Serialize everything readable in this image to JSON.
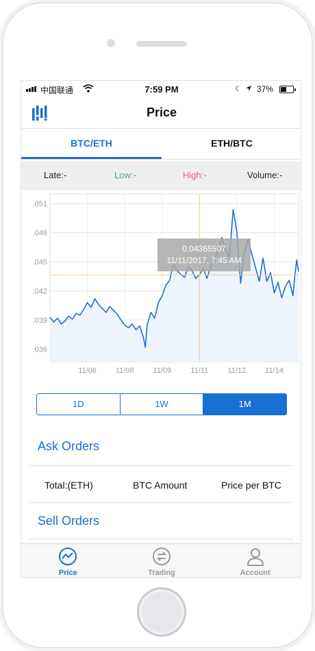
{
  "status_bar": {
    "carrier": "中国联通",
    "time": "7:59 PM",
    "battery": "37%"
  },
  "header": {
    "title": "Price"
  },
  "pair_tabs": [
    {
      "label": "BTC/ETH",
      "active": true
    },
    {
      "label": "ETH/BTC",
      "active": false
    }
  ],
  "stats": {
    "late": "Late:-",
    "low": "Low:-",
    "high": "High:-",
    "volume": "Volume:-",
    "low_color": "#3cb371",
    "high_color": "#e3627a"
  },
  "tooltip": {
    "value": "0.04365507",
    "datetime": "11/11/2017, 7:45 AM"
  },
  "chart_data": {
    "type": "area",
    "title": "",
    "xlabel": "",
    "ylabel": "",
    "y_tick_labels": [
      ".051",
      ".048",
      ".045",
      ".042",
      ".039",
      ".036"
    ],
    "y_ticks": [
      0.051,
      0.048,
      0.045,
      0.042,
      0.039,
      0.036
    ],
    "ylim": [
      0.0347,
      0.052
    ],
    "x_tick_labels": [
      "11/06",
      "11/08",
      "11/09",
      "11/11",
      "11/12",
      "11/14"
    ],
    "x_ticks": [
      2.0,
      4.0,
      6.0,
      8.0,
      10.0,
      12.0
    ],
    "xlim": [
      0.0,
      13.3
    ],
    "grid": true,
    "crosshair": {
      "x": 8.0,
      "y": 0.04366
    },
    "series": [
      {
        "x": [
          0.0,
          0.2,
          0.4,
          0.6,
          0.8,
          1.0,
          1.2,
          1.4,
          1.6,
          1.8,
          2.0,
          2.2,
          2.4,
          2.6,
          2.8,
          3.0,
          3.2,
          3.4,
          3.6,
          3.8,
          4.0,
          4.2,
          4.4,
          4.6,
          4.8,
          5.0,
          5.1,
          5.2,
          5.4,
          5.6,
          5.8,
          6.0,
          6.2,
          6.4,
          6.6,
          6.8,
          7.0,
          7.2,
          7.4,
          7.6,
          7.8,
          8.0,
          8.2,
          8.4,
          8.6,
          8.8,
          9.0,
          9.2,
          9.4,
          9.6,
          9.8,
          10.0,
          10.2,
          10.4,
          10.6,
          10.8,
          11.0,
          11.2,
          11.4,
          11.6,
          11.8,
          12.0,
          12.2,
          12.4,
          12.6,
          12.8,
          13.0,
          13.1,
          13.2,
          13.3
        ],
        "values": [
          0.0393,
          0.0388,
          0.0392,
          0.0386,
          0.0389,
          0.0394,
          0.0391,
          0.0397,
          0.0395,
          0.0401,
          0.0408,
          0.0403,
          0.0412,
          0.0406,
          0.0402,
          0.0398,
          0.0404,
          0.04,
          0.0396,
          0.039,
          0.0385,
          0.0382,
          0.0386,
          0.038,
          0.0384,
          0.0372,
          0.0362,
          0.0385,
          0.0398,
          0.0392,
          0.0408,
          0.0415,
          0.0426,
          0.0431,
          0.0448,
          0.0441,
          0.0437,
          0.0434,
          0.0445,
          0.0441,
          0.0433,
          0.0437,
          0.0443,
          0.0433,
          0.0446,
          0.0451,
          0.0464,
          0.0475,
          0.0462,
          0.0455,
          0.0504,
          0.0481,
          0.0428,
          0.046,
          0.0473,
          0.0458,
          0.0444,
          0.043,
          0.0454,
          0.043,
          0.0439,
          0.0418,
          0.0429,
          0.0413,
          0.0425,
          0.0431,
          0.0415,
          0.0436,
          0.0452,
          0.044
        ]
      }
    ]
  },
  "range_tabs": [
    {
      "label": "1D",
      "active": false
    },
    {
      "label": "1W",
      "active": false
    },
    {
      "label": "1M",
      "active": true
    }
  ],
  "orders": {
    "ask_heading": "Ask Orders",
    "columns": [
      "Total:(ETH)",
      "BTC Amount",
      "Price per BTC"
    ],
    "sell_heading": "Sell Orders"
  },
  "tab_bar": [
    {
      "label": "Price",
      "icon": "chart-circle-icon",
      "active": true
    },
    {
      "label": "Trading",
      "icon": "exchange-icon",
      "active": false
    },
    {
      "label": "Account",
      "icon": "user-icon",
      "active": false
    }
  ],
  "colors": {
    "accent": "#1a6fd4",
    "crosshair": "#f6c995",
    "area_fill": "#eef4fb"
  }
}
